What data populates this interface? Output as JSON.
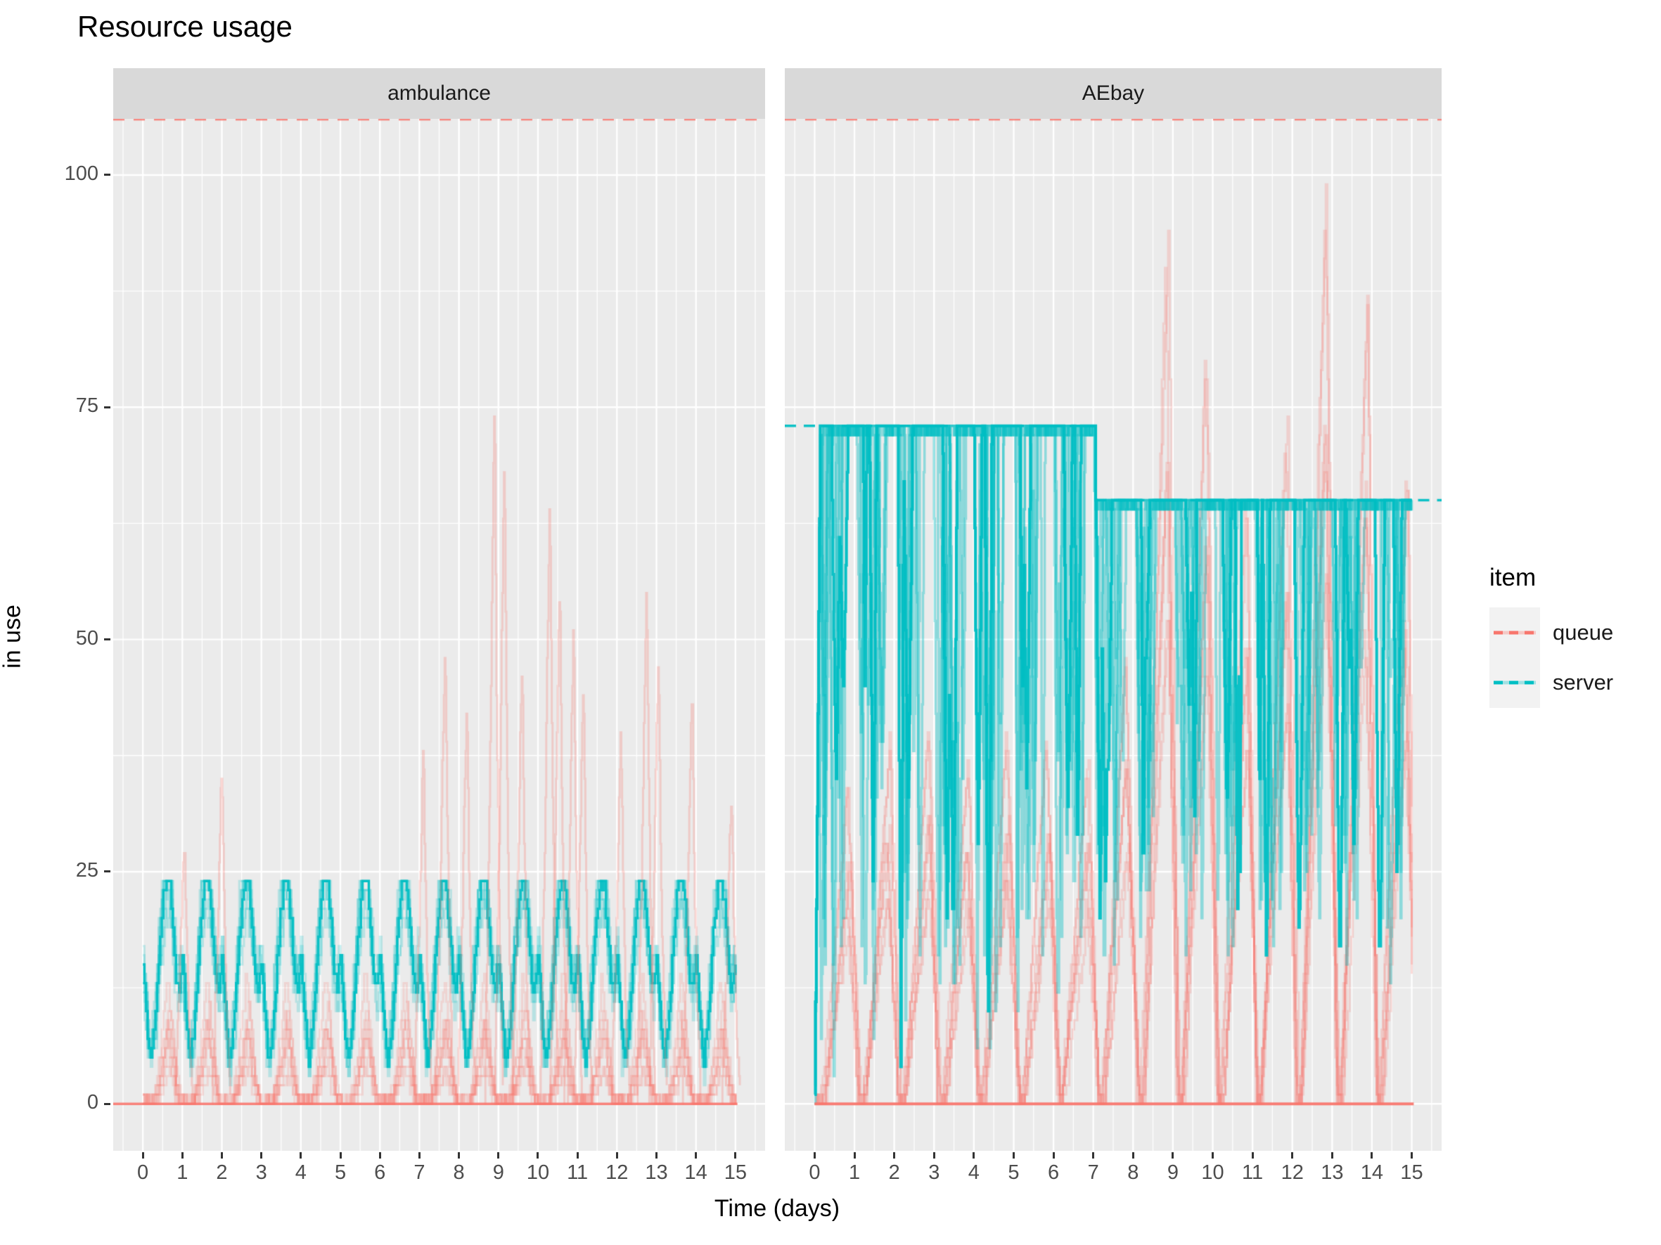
{
  "chart_data": {
    "type": "line",
    "title": "Resource usage",
    "xlabel": "Time (days)",
    "ylabel": "in use",
    "x_ticks": [
      0,
      1,
      2,
      3,
      4,
      5,
      6,
      7,
      8,
      9,
      10,
      11,
      12,
      13,
      14,
      15
    ],
    "y_ticks": [
      0,
      25,
      50,
      75,
      100
    ],
    "x_limits": [
      -0.75,
      15.75
    ],
    "y_limits": [
      -5.05,
      106.05
    ],
    "minor_x_step": 0.5,
    "minor_y_ticks": [
      12.5,
      37.5,
      62.5,
      87.5
    ],
    "grid": true,
    "colors": {
      "queue": "#F8766D",
      "server": "#00BFC4",
      "panel_background": "#EBEBEB",
      "strip_background": "#D9D9D9",
      "gridline": "#FFFFFF",
      "axis_text": "#4D4D4D"
    },
    "legend": {
      "title": "item",
      "position": "right",
      "entries": [
        {
          "label": "queue",
          "color": "#F8766D",
          "linetype": "dashed"
        },
        {
          "label": "server",
          "color": "#00BFC4",
          "linetype": "dashed"
        }
      ]
    },
    "queue_limit_dashed_y": 106,
    "replications": 8,
    "seed": 7,
    "sample_step_days": 0.04,
    "facets": [
      {
        "label": "ambulance",
        "server": {
          "pattern": "daily-cycle",
          "capacity": 24,
          "daily_profile": [
            [
              0,
              15
            ],
            [
              0.08,
              10
            ],
            [
              0.18,
              4
            ],
            [
              0.3,
              8
            ],
            [
              0.42,
              16
            ],
            [
              0.52,
              21
            ],
            [
              0.6,
              24
            ],
            [
              0.68,
              22
            ],
            [
              0.76,
              18
            ],
            [
              0.84,
              13
            ],
            [
              0.92,
              12
            ],
            [
              1,
              15
            ]
          ]
        },
        "queue": {
          "baseline": 0,
          "daily_profile": [
            [
              0,
              0
            ],
            [
              0.25,
              0
            ],
            [
              0.38,
              3
            ],
            [
              0.52,
              7
            ],
            [
              0.62,
              11
            ],
            [
              0.72,
              7
            ],
            [
              0.85,
              2
            ],
            [
              0.93,
              0
            ],
            [
              1,
              0
            ]
          ],
          "spikes": [
            [
              1.05,
              30
            ],
            [
              2.0,
              37
            ],
            [
              7.1,
              38
            ],
            [
              7.65,
              51
            ],
            [
              8.2,
              43
            ],
            [
              8.9,
              76
            ],
            [
              9.15,
              71
            ],
            [
              9.6,
              48
            ],
            [
              10.3,
              66
            ],
            [
              10.55,
              57
            ],
            [
              10.9,
              52
            ],
            [
              11.15,
              45
            ],
            [
              12.1,
              40
            ],
            [
              12.75,
              57
            ],
            [
              13.05,
              49
            ],
            [
              13.9,
              45
            ],
            [
              14.9,
              35
            ]
          ]
        }
      },
      {
        "label": "AEbay",
        "server": {
          "pattern": "capacity-with-dips",
          "capacity_schedule": [
            [
              0,
              73
            ],
            [
              7.05,
              65
            ]
          ],
          "start_value": 1,
          "dip_bottom_range_before_day7": [
            3,
            45
          ],
          "dip_bottom_range_after_day7": [
            12,
            50
          ]
        },
        "queue": {
          "baseline": 0,
          "daily_peaks": [
            35,
            40,
            42,
            38,
            41,
            40,
            38,
            50,
            95,
            84,
            68,
            77,
            101,
            90,
            70
          ]
        }
      }
    ]
  }
}
